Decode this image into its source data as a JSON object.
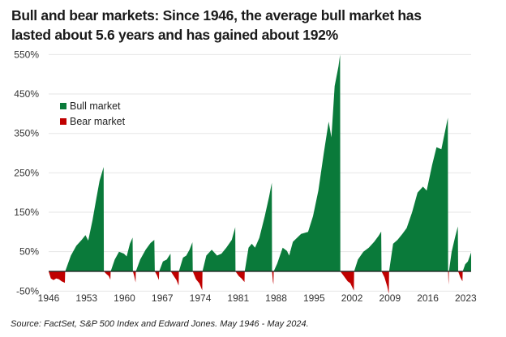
{
  "chart_data": {
    "type": "area",
    "title": "Bull and bear markets: Since 1946, the average bull market has lasted about 5.6 years and has gained about 192%",
    "title_lines": [
      "Bull and bear markets: Since 1946, the average bull market has",
      "lasted about 5.6 years and has gained about 192%"
    ],
    "xlabel": "",
    "ylabel": "",
    "xlim": [
      1946.4,
      2024.4
    ],
    "ylim": [
      -50,
      550
    ],
    "grid": true,
    "y_ticks": [
      -50,
      50,
      150,
      250,
      350,
      450,
      550
    ],
    "y_tick_labels": [
      "-50%",
      "50%",
      "150%",
      "250%",
      "350%",
      "450%",
      "550%"
    ],
    "x_ticks": [
      1946,
      1953,
      1960,
      1967,
      1974,
      1981,
      1988,
      1995,
      2002,
      2009,
      2016,
      2023
    ],
    "x_tick_labels": [
      "1946",
      "1953",
      "1960",
      "1967",
      "1974",
      "1981",
      "1988",
      "1995",
      "2002",
      "2009",
      "2016",
      "2023"
    ],
    "legend": {
      "placement": "top-left",
      "entries": [
        {
          "label": "Bull market",
          "color": "#0a7a3a"
        },
        {
          "label": "Bear market",
          "color": "#c00000"
        }
      ]
    },
    "colors": {
      "bull": "#0a7a3a",
      "bear": "#c00000",
      "grid": "#e6e6e6",
      "axis": "#1a1a1a"
    },
    "series": [
      {
        "name": "Bear market",
        "kind": "bear",
        "points": [
          [
            1946.4,
            0
          ],
          [
            1946.8,
            -18
          ],
          [
            1947.3,
            -22
          ],
          [
            1947.8,
            -18
          ],
          [
            1948.3,
            -20
          ],
          [
            1948.8,
            -25
          ],
          [
            1949.4,
            -29
          ],
          [
            1949.45,
            0
          ]
        ]
      },
      {
        "name": "Bull market",
        "kind": "bull",
        "points": [
          [
            1949.45,
            0
          ],
          [
            1950.5,
            40
          ],
          [
            1951.5,
            65
          ],
          [
            1952.5,
            80
          ],
          [
            1953.2,
            92
          ],
          [
            1953.7,
            78
          ],
          [
            1954.5,
            130
          ],
          [
            1955.2,
            185
          ],
          [
            1955.8,
            230
          ],
          [
            1956.55,
            265
          ],
          [
            1956.6,
            0
          ]
        ]
      },
      {
        "name": "Bear market",
        "kind": "bear",
        "points": [
          [
            1956.6,
            0
          ],
          [
            1957.0,
            -6
          ],
          [
            1957.5,
            -12
          ],
          [
            1957.8,
            -21
          ],
          [
            1957.85,
            0
          ]
        ]
      },
      {
        "name": "Bull market",
        "kind": "bull",
        "points": [
          [
            1957.85,
            0
          ],
          [
            1958.6,
            30
          ],
          [
            1959.4,
            50
          ],
          [
            1960.3,
            45
          ],
          [
            1960.8,
            38
          ],
          [
            1961.4,
            70
          ],
          [
            1961.9,
            86
          ],
          [
            1961.95,
            0
          ]
        ]
      },
      {
        "name": "Bear market",
        "kind": "bear",
        "points": [
          [
            1961.95,
            0
          ],
          [
            1962.2,
            -12
          ],
          [
            1962.45,
            -28
          ],
          [
            1962.5,
            0
          ]
        ]
      },
      {
        "name": "Bull market",
        "kind": "bull",
        "points": [
          [
            1962.5,
            0
          ],
          [
            1963.3,
            30
          ],
          [
            1964.3,
            55
          ],
          [
            1965.2,
            72
          ],
          [
            1965.9,
            80
          ],
          [
            1966.0,
            0
          ]
        ]
      },
      {
        "name": "Bear market",
        "kind": "bear",
        "points": [
          [
            1966.0,
            0
          ],
          [
            1966.4,
            -10
          ],
          [
            1966.75,
            -22
          ],
          [
            1966.8,
            0
          ]
        ]
      },
      {
        "name": "Bull market",
        "kind": "bull",
        "points": [
          [
            1966.8,
            0
          ],
          [
            1967.5,
            25
          ],
          [
            1968.2,
            30
          ],
          [
            1968.9,
            45
          ],
          [
            1968.95,
            0
          ]
        ]
      },
      {
        "name": "Bear market",
        "kind": "bear",
        "points": [
          [
            1968.95,
            0
          ],
          [
            1969.5,
            -12
          ],
          [
            1970.0,
            -22
          ],
          [
            1970.4,
            -36
          ],
          [
            1970.45,
            0
          ]
        ]
      },
      {
        "name": "Bull market",
        "kind": "bull",
        "points": [
          [
            1970.45,
            0
          ],
          [
            1971.2,
            35
          ],
          [
            1971.8,
            40
          ],
          [
            1972.4,
            55
          ],
          [
            1972.95,
            74
          ],
          [
            1973.0,
            0
          ]
        ]
      },
      {
        "name": "Bear market",
        "kind": "bear",
        "points": [
          [
            1973.0,
            0
          ],
          [
            1973.6,
            -20
          ],
          [
            1974.2,
            -30
          ],
          [
            1974.75,
            -48
          ],
          [
            1974.8,
            0
          ]
        ]
      },
      {
        "name": "Bull market",
        "kind": "bull",
        "points": [
          [
            1974.8,
            0
          ],
          [
            1975.5,
            40
          ],
          [
            1976.5,
            55
          ],
          [
            1977.5,
            40
          ],
          [
            1978.3,
            45
          ],
          [
            1979.2,
            60
          ],
          [
            1980.2,
            80
          ],
          [
            1980.85,
            112
          ],
          [
            1980.9,
            0
          ]
        ]
      },
      {
        "name": "Bear market",
        "kind": "bear",
        "points": [
          [
            1980.9,
            0
          ],
          [
            1981.5,
            -12
          ],
          [
            1982.0,
            -18
          ],
          [
            1982.55,
            -27
          ],
          [
            1982.6,
            0
          ]
        ]
      },
      {
        "name": "Bull market",
        "kind": "bull",
        "points": [
          [
            1982.6,
            0
          ],
          [
            1983.3,
            60
          ],
          [
            1983.9,
            70
          ],
          [
            1984.5,
            60
          ],
          [
            1985.3,
            85
          ],
          [
            1986.3,
            140
          ],
          [
            1987.1,
            190
          ],
          [
            1987.6,
            225
          ],
          [
            1987.65,
            0
          ]
        ]
      },
      {
        "name": "Bear market",
        "kind": "bear",
        "points": [
          [
            1987.65,
            0
          ],
          [
            1987.8,
            -25
          ],
          [
            1987.9,
            -33
          ],
          [
            1987.95,
            0
          ]
        ]
      },
      {
        "name": "Bull market",
        "kind": "bull",
        "points": [
          [
            1987.95,
            0
          ],
          [
            1988.6,
            20
          ],
          [
            1989.6,
            60
          ],
          [
            1990.4,
            52
          ],
          [
            1990.8,
            40
          ],
          [
            1991.5,
            75
          ],
          [
            1993.0,
            95
          ],
          [
            1994.3,
            100
          ],
          [
            1995.2,
            140
          ],
          [
            1996.2,
            205
          ],
          [
            1997.2,
            300
          ],
          [
            1998.1,
            380
          ],
          [
            1998.6,
            340
          ],
          [
            1999.2,
            470
          ],
          [
            1999.9,
            520
          ],
          [
            2000.2,
            550
          ],
          [
            2000.25,
            0
          ]
        ]
      },
      {
        "name": "Bear market",
        "kind": "bear",
        "points": [
          [
            2000.25,
            0
          ],
          [
            2000.9,
            -12
          ],
          [
            2001.6,
            -25
          ],
          [
            2002.1,
            -30
          ],
          [
            2002.75,
            -49
          ],
          [
            2002.8,
            0
          ]
        ]
      },
      {
        "name": "Bull market",
        "kind": "bull",
        "points": [
          [
            2002.8,
            0
          ],
          [
            2003.5,
            30
          ],
          [
            2004.5,
            50
          ],
          [
            2005.5,
            60
          ],
          [
            2006.5,
            75
          ],
          [
            2007.3,
            90
          ],
          [
            2007.8,
            101
          ],
          [
            2007.85,
            0
          ]
        ]
      },
      {
        "name": "Bear market",
        "kind": "bear",
        "points": [
          [
            2007.85,
            0
          ],
          [
            2008.4,
            -15
          ],
          [
            2008.9,
            -38
          ],
          [
            2009.2,
            -57
          ],
          [
            2009.25,
            0
          ]
        ]
      },
      {
        "name": "Bull market",
        "kind": "bull",
        "points": [
          [
            2009.25,
            0
          ],
          [
            2010.0,
            70
          ],
          [
            2010.8,
            80
          ],
          [
            2011.7,
            95
          ],
          [
            2012.5,
            110
          ],
          [
            2013.5,
            150
          ],
          [
            2014.5,
            200
          ],
          [
            2015.5,
            215
          ],
          [
            2016.2,
            205
          ],
          [
            2017.2,
            270
          ],
          [
            2018.0,
            315
          ],
          [
            2018.9,
            310
          ],
          [
            2019.5,
            350
          ],
          [
            2020.1,
            390
          ],
          [
            2020.15,
            0
          ]
        ]
      },
      {
        "name": "Bear market",
        "kind": "bear",
        "points": [
          [
            2020.15,
            0
          ],
          [
            2020.2,
            -20
          ],
          [
            2020.25,
            -34
          ],
          [
            2020.3,
            0
          ]
        ]
      },
      {
        "name": "Bull market",
        "kind": "bull",
        "points": [
          [
            2020.3,
            0
          ],
          [
            2020.8,
            50
          ],
          [
            2021.4,
            85
          ],
          [
            2021.95,
            114
          ],
          [
            2022.0,
            0
          ]
        ]
      },
      {
        "name": "Bear market",
        "kind": "bear",
        "points": [
          [
            2022.0,
            0
          ],
          [
            2022.4,
            -15
          ],
          [
            2022.8,
            -25
          ],
          [
            2022.85,
            0
          ]
        ]
      },
      {
        "name": "Bull market",
        "kind": "bull",
        "points": [
          [
            2022.85,
            0
          ],
          [
            2023.3,
            18
          ],
          [
            2023.8,
            25
          ],
          [
            2024.4,
            48
          ]
        ]
      }
    ]
  },
  "source": "Source: FactSet, S&P 500 Index and Edward Jones. May 1946 - May 2024."
}
